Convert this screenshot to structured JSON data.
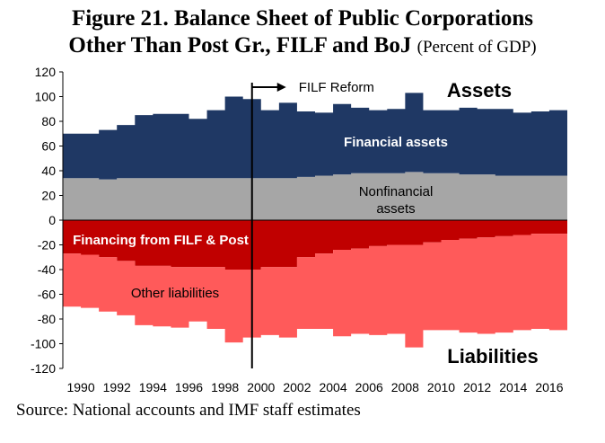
{
  "title_line1": "Figure 21. Balance Sheet of Public Corporations",
  "title_line2": "Other Than Post Gr., FILF and BoJ",
  "title_unit": "(Percent of GDP)",
  "source": "Source: National accounts and IMF staff estimates",
  "chart_data": {
    "type": "area",
    "ylim": [
      -120,
      120
    ],
    "yticks": [
      120,
      100,
      80,
      60,
      40,
      20,
      0,
      -20,
      -40,
      -60,
      -80,
      -100,
      -120
    ],
    "x": [
      1990,
      1991,
      1992,
      1993,
      1994,
      1995,
      1996,
      1997,
      1998,
      1999,
      2000,
      2001,
      2002,
      2003,
      2004,
      2005,
      2006,
      2007,
      2008,
      2009,
      2010,
      2011,
      2012,
      2013,
      2014,
      2015,
      2016,
      2017
    ],
    "xtick_labels": [
      "1990",
      "1992",
      "1994",
      "1996",
      "1998",
      "2000",
      "2002",
      "2004",
      "2006",
      "2008",
      "2010",
      "2012",
      "2014",
      "2016"
    ],
    "series": [
      {
        "name": "Nonfinancial assets",
        "stack": "assets",
        "color": "#a6a6a6",
        "values": [
          34,
          34,
          33,
          34,
          34,
          34,
          34,
          34,
          34,
          34,
          34,
          34,
          34,
          35,
          36,
          37,
          38,
          38,
          38,
          39,
          38,
          38,
          37,
          37,
          36,
          36,
          36,
          36
        ]
      },
      {
        "name": "Financial assets",
        "stack": "assets",
        "color": "#1f3864",
        "values": [
          36,
          36,
          40,
          43,
          51,
          52,
          52,
          48,
          55,
          66,
          64,
          55,
          61,
          53,
          51,
          57,
          53,
          51,
          52,
          64,
          51,
          51,
          54,
          53,
          54,
          51,
          52,
          53
        ]
      },
      {
        "name": "Financing from FILF & Post",
        "stack": "liabilities",
        "color": "#c00000",
        "values": [
          -27,
          -28,
          -30,
          -33,
          -37,
          -37,
          -38,
          -38,
          -38,
          -40,
          -40,
          -38,
          -38,
          -30,
          -27,
          -24,
          -23,
          -21,
          -20,
          -20,
          -18,
          -16,
          -15,
          -14,
          -13,
          -12,
          -11,
          -11
        ]
      },
      {
        "name": "Other liabilities",
        "stack": "liabilities",
        "color": "#ff5a5a",
        "values": [
          -43,
          -43,
          -44,
          -44,
          -48,
          -49,
          -49,
          -44,
          -50,
          -59,
          -55,
          -55,
          -57,
          -58,
          -61,
          -70,
          -69,
          -72,
          -72,
          -83,
          -71,
          -73,
          -76,
          -78,
          -78,
          -77,
          -77,
          -78
        ]
      }
    ],
    "annotations": {
      "reform_label": "FILF Reform",
      "reform_year": 2000.5,
      "assets_label": "Assets",
      "liabilities_label": "Liabilities",
      "financial_assets_label": "Financial assets",
      "nonfinancial_label_1": "Nonfinancial",
      "nonfinancial_label_2": "assets",
      "financing_label": "Financing from FILF & Post",
      "other_liabilities_label": "Other liabilities"
    }
  }
}
